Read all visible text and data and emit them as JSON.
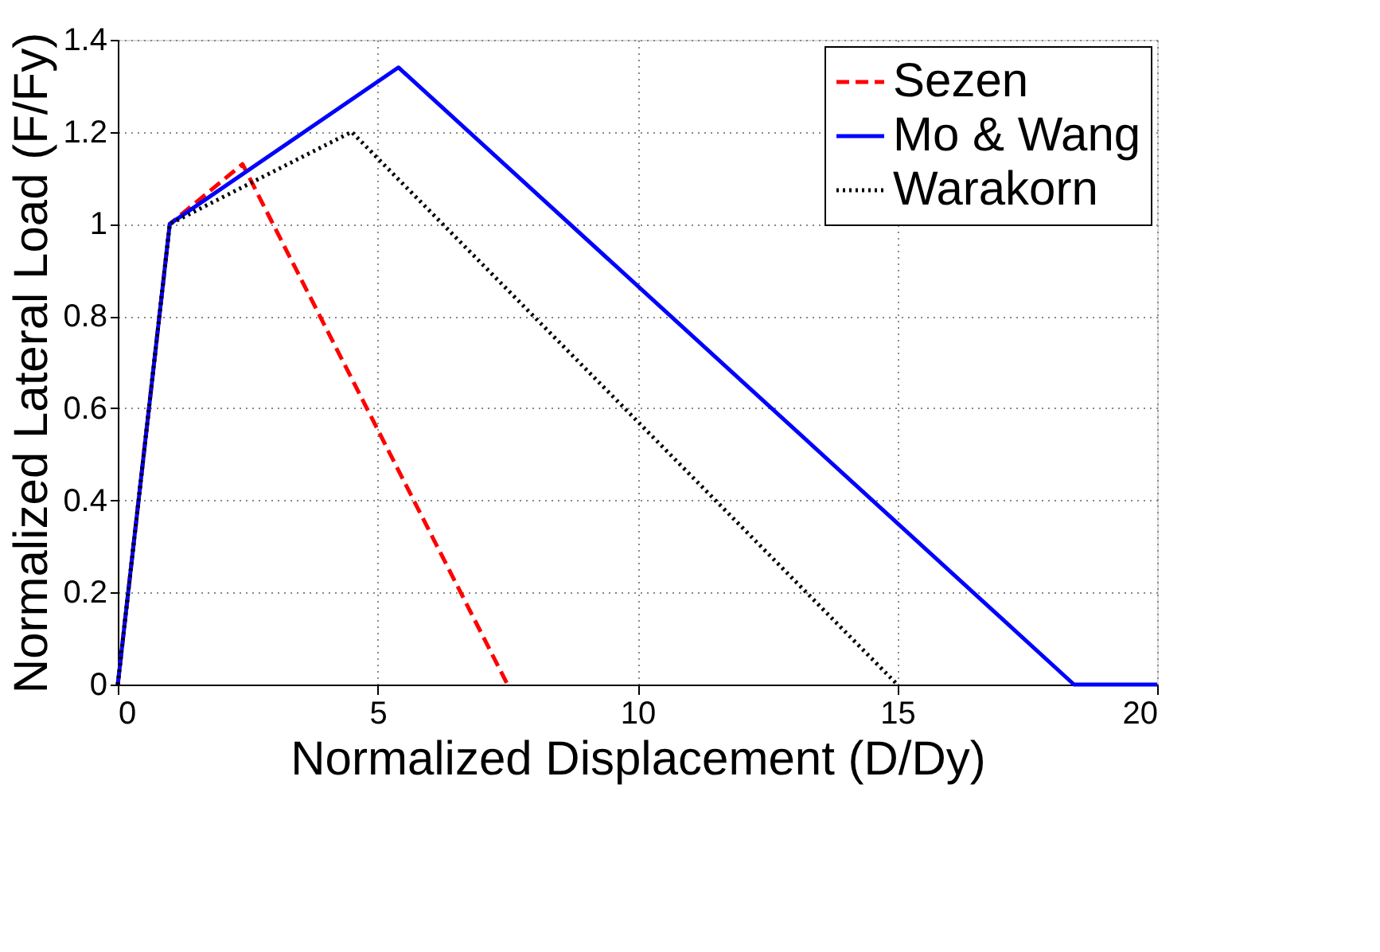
{
  "chart_data": {
    "type": "line",
    "xlabel": "Normalized Displacement (D/Dy)",
    "ylabel": "Normalized Lateral Load (F/Fy)",
    "xlim": [
      0,
      20
    ],
    "xticks": [
      0,
      5,
      10,
      15,
      20
    ],
    "ylim": [
      0,
      1.4
    ],
    "yticks": [
      0,
      0.2,
      0.4,
      0.6,
      0.8,
      1,
      1.2,
      1.4
    ],
    "grid": true,
    "legend": "top right",
    "marker": "none",
    "series": [
      {
        "name": "Sezen",
        "color": "#ff0000",
        "line_style": "dashed",
        "x": [
          0,
          1,
          2.4,
          7.5
        ],
        "values": [
          0,
          1,
          1.13,
          0
        ]
      },
      {
        "name": "Mo & Wang",
        "color": "#0000ff",
        "line_style": "solid",
        "x": [
          0,
          1,
          5.4,
          18.4,
          20
        ],
        "values": [
          0,
          1,
          1.34,
          0,
          0
        ]
      },
      {
        "name": "Warakorn",
        "color": "#000000",
        "line_style": "dotted",
        "x": [
          0,
          1,
          4.5,
          15
        ],
        "values": [
          0,
          1,
          1.2,
          0
        ]
      }
    ]
  }
}
